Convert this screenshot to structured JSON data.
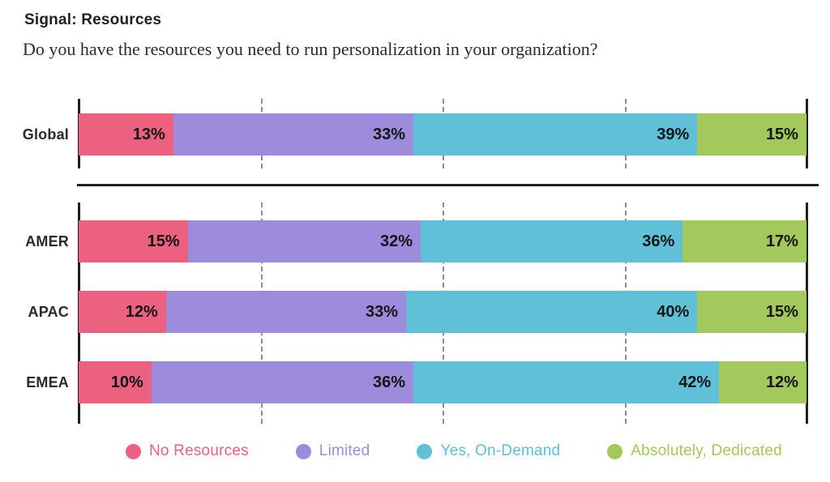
{
  "header": {
    "title": "Signal: Resources",
    "subtitle": "Do you have the resources you need to run personalization in your organization?"
  },
  "chart_data": {
    "type": "bar",
    "orientation": "horizontal",
    "stacked": true,
    "unit": "%",
    "xlim": [
      0,
      100
    ],
    "grid": "dashed-vertical",
    "gridlines_pct": [
      25,
      50,
      75
    ],
    "legend_position": "bottom",
    "series_labels": [
      "No Resources",
      "Limited",
      "Yes, On-Demand",
      "Absolutely, Dedicated"
    ],
    "colors": [
      "#EC6080",
      "#9C8CDB",
      "#5FC0D8",
      "#A3C85C"
    ],
    "groups": [
      {
        "name": "global",
        "rows": [
          {
            "category": "Global",
            "values": [
              13,
              33,
              39,
              15
            ]
          }
        ]
      },
      {
        "name": "regions",
        "rows": [
          {
            "category": "AMER",
            "values": [
              15,
              32,
              36,
              17
            ]
          },
          {
            "category": "APAC",
            "values": [
              12,
              33,
              40,
              15
            ]
          },
          {
            "category": "EMEA",
            "values": [
              10,
              36,
              42,
              12
            ]
          }
        ]
      }
    ],
    "legend": [
      {
        "label": "No Resources",
        "color": "#EC6080"
      },
      {
        "label": "Limited",
        "color": "#9C8CDB"
      },
      {
        "label": "Yes, On-Demand",
        "color": "#5FC0D8"
      },
      {
        "label": "Absolutely, Dedicated",
        "color": "#A3C85C"
      }
    ]
  }
}
